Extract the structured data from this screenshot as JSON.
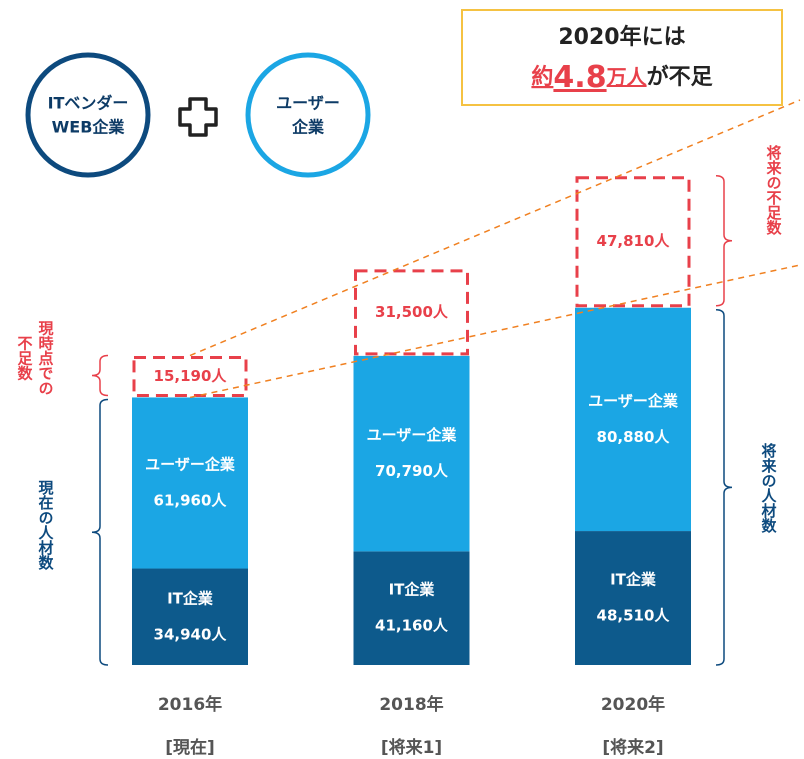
{
  "chart_data": {
    "type": "stacked_bar",
    "categories": [
      "2016年",
      "2018年",
      "2020年"
    ],
    "category_sublabels": [
      "[現在]",
      "[将来1]",
      "[将来2]"
    ],
    "series": [
      {
        "name": "IT企業",
        "color": "#0d5a8c",
        "values": [
          34940,
          41160,
          48510
        ],
        "value_labels": [
          "34,940人",
          "41,160人",
          "48,510人"
        ]
      },
      {
        "name": "ユーザー企業",
        "color": "#1ba6e4",
        "values": [
          61960,
          70790,
          80880
        ],
        "value_labels": [
          "61,960人",
          "70,790人",
          "80,880人"
        ]
      },
      {
        "color": "#e8404a",
        "dashed": true,
        "values": [
          15190,
          31500,
          47810
        ],
        "value_labels": [
          "15,190人",
          "31,500人",
          "47,810人"
        ]
      }
    ],
    "ylim": [
      0,
      180000
    ],
    "circles": [
      [
        "ITベンダー",
        "WEB企業"
      ],
      [
        "ユーザー",
        "企業"
      ]
    ],
    "callout": {
      "line1": "2020年には",
      "line2": [
        "約",
        "4.8",
        "万人",
        "が不足"
      ]
    },
    "brackets": {
      "current_shortage": [
        "現時点での",
        "不足数"
      ],
      "current_staff": "現在の人材数",
      "future_shortage": "将来の不足数",
      "future_staff": "将来の人材数"
    }
  }
}
